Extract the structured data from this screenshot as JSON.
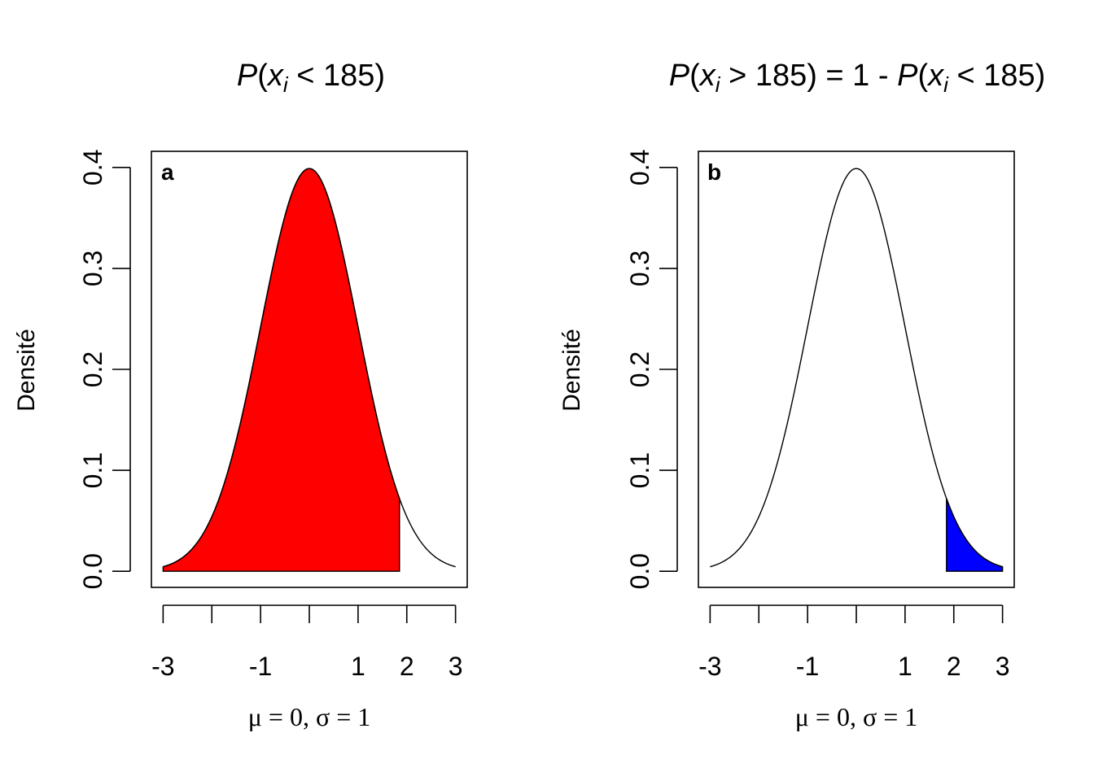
{
  "chart_data": [
    {
      "type": "area",
      "panel_label": "a",
      "title": {
        "prefix": "P",
        "open": "(",
        "var": "x",
        "sub": "i",
        "rest": " < 185)"
      },
      "ylabel": "Densité",
      "xlabel": "μ = 0, σ = 1",
      "distribution": {
        "name": "normal",
        "mean": 0,
        "sd": 1
      },
      "curve_range": [
        -3,
        3
      ],
      "xlim": [
        -3.24,
        3.24
      ],
      "ylim": [
        -0.016,
        0.416
      ],
      "x_ticks": [
        -3,
        -2,
        -1,
        0,
        1,
        2,
        3
      ],
      "x_tick_labels": [
        "-3",
        "",
        "-1",
        "",
        "1",
        "2",
        "3"
      ],
      "y_ticks": [
        0.0,
        0.1,
        0.2,
        0.3,
        0.4
      ],
      "y_tick_labels": [
        "0.0",
        "0.1",
        "0.2",
        "0.3",
        "0.4"
      ],
      "shaded_region": {
        "from": -3,
        "to": 1.85,
        "color": "#ff0000"
      }
    },
    {
      "type": "area",
      "panel_label": "b",
      "title": {
        "prefix": "P",
        "open": "(",
        "var": "x",
        "sub": "i",
        "rest": " > 185) = 1 - ",
        "prefix2": "P",
        "open2": "(",
        "var2": "x",
        "sub2": "i",
        "rest2": " < 185)"
      },
      "ylabel": "Densité",
      "xlabel": "μ = 0, σ = 1",
      "distribution": {
        "name": "normal",
        "mean": 0,
        "sd": 1
      },
      "curve_range": [
        -3,
        3
      ],
      "xlim": [
        -3.24,
        3.24
      ],
      "ylim": [
        -0.016,
        0.416
      ],
      "x_ticks": [
        -3,
        -2,
        -1,
        0,
        1,
        2,
        3
      ],
      "x_tick_labels": [
        "-3",
        "",
        "-1",
        "",
        "1",
        "2",
        "3"
      ],
      "y_ticks": [
        0.0,
        0.1,
        0.2,
        0.3,
        0.4
      ],
      "y_tick_labels": [
        "0.0",
        "0.1",
        "0.2",
        "0.3",
        "0.4"
      ],
      "shaded_region": {
        "from": 1.85,
        "to": 3,
        "color": "#0000ff"
      }
    }
  ]
}
